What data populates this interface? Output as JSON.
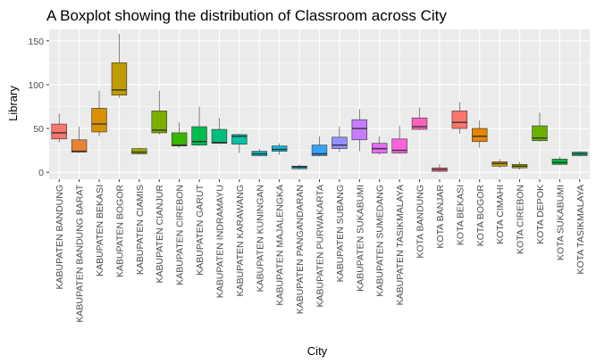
{
  "chart_data": {
    "type": "boxplot",
    "title": "A Boxplot showing the distribution of Classroom across City",
    "xlabel": "City",
    "ylabel": "Library",
    "ylim": [
      -8,
      163
    ],
    "y_ticks": [
      0,
      50,
      100,
      150
    ],
    "grid": true,
    "legend": "none",
    "panel_color": "#ebebeb",
    "categories": [
      {
        "name": "KABUPATEN BANDUNG",
        "min": 34,
        "q1": 38,
        "median": 45,
        "q3": 55,
        "max": 67,
        "color": "#F8766D"
      },
      {
        "name": "KABUPATEN BANDUNG BARAT",
        "min": 22,
        "q1": 23,
        "median": 24,
        "q3": 37,
        "max": 52,
        "color": "#EA8331"
      },
      {
        "name": "KABUPATEN BEKASI",
        "min": 41,
        "q1": 46,
        "median": 55,
        "q3": 73,
        "max": 93,
        "color": "#D89000"
      },
      {
        "name": "KABUPATEN BOGOR",
        "min": 85,
        "q1": 88,
        "median": 94,
        "q3": 125,
        "max": 158,
        "color": "#C09B00"
      },
      {
        "name": "KABUPATEN CIAMIS",
        "min": 20,
        "q1": 21,
        "median": 23,
        "q3": 27,
        "max": 28,
        "color": "#A3A500"
      },
      {
        "name": "KABUPATEN CIANJUR",
        "min": 43,
        "q1": 45,
        "median": 48,
        "q3": 70,
        "max": 93,
        "color": "#7CAE00"
      },
      {
        "name": "KABUPATEN CIREBON",
        "min": 28,
        "q1": 30,
        "median": 31,
        "q3": 45,
        "max": 57,
        "color": "#39B600"
      },
      {
        "name": "KABUPATEN GARUT",
        "min": 30,
        "q1": 31,
        "median": 35,
        "q3": 52,
        "max": 75,
        "color": "#00BB4E"
      },
      {
        "name": "KABUPATEN INDRAMAYU",
        "min": 32,
        "q1": 33,
        "median": 34,
        "q3": 49,
        "max": 62,
        "color": "#00BF7D"
      },
      {
        "name": "KABUPATEN KARAWANG",
        "min": 22,
        "q1": 32,
        "median": 41,
        "q3": 43,
        "max": 44,
        "color": "#00C1A3"
      },
      {
        "name": "KABUPATEN KUNINGAN",
        "min": 18,
        "q1": 19,
        "median": 21,
        "q3": 24,
        "max": 27,
        "color": "#00BFC4"
      },
      {
        "name": "KABUPATEN MAJALENGKA",
        "min": 20,
        "q1": 24,
        "median": 26,
        "q3": 30,
        "max": 33,
        "color": "#00BAE0"
      },
      {
        "name": "KABUPATEN PANGANDARAN",
        "min": 3,
        "q1": 4,
        "median": 6,
        "q3": 7,
        "max": 9,
        "color": "#00B0F6"
      },
      {
        "name": "KABUPATEN PURWAKARTA",
        "min": 18,
        "q1": 19,
        "median": 21,
        "q3": 31,
        "max": 41,
        "color": "#35A2FF"
      },
      {
        "name": "KABUPATEN SUBANG",
        "min": 23,
        "q1": 27,
        "median": 31,
        "q3": 40,
        "max": 52,
        "color": "#9590FF"
      },
      {
        "name": "KABUPATEN SUKABUMI",
        "min": 24,
        "q1": 37,
        "median": 50,
        "q3": 60,
        "max": 72,
        "color": "#C77CFF"
      },
      {
        "name": "KABUPATEN SUMEDANG",
        "min": 20,
        "q1": 22,
        "median": 27,
        "q3": 33,
        "max": 41,
        "color": "#E76BF3"
      },
      {
        "name": "KABUPATEN TASIKMALAYA",
        "min": 21,
        "q1": 22,
        "median": 25,
        "q3": 38,
        "max": 53,
        "color": "#FA62DB"
      },
      {
        "name": "KOTA BANDUNG",
        "min": 48,
        "q1": 49,
        "median": 52,
        "q3": 62,
        "max": 74,
        "color": "#FF62BC"
      },
      {
        "name": "KOTA BANJAR",
        "min": 0,
        "q1": 1,
        "median": 3,
        "q3": 5,
        "max": 9,
        "color": "#FF6C91"
      },
      {
        "name": "KOTA BEKASI",
        "min": 44,
        "q1": 50,
        "median": 57,
        "q3": 70,
        "max": 80,
        "color": "#F8766D"
      },
      {
        "name": "KOTA BOGOR",
        "min": 28,
        "q1": 35,
        "median": 41,
        "q3": 50,
        "max": 59,
        "color": "#E58700"
      },
      {
        "name": "KOTA CIMAHI",
        "min": 5,
        "q1": 7,
        "median": 10,
        "q3": 12,
        "max": 15,
        "color": "#C99800"
      },
      {
        "name": "KOTA CIREBON",
        "min": 3,
        "q1": 5,
        "median": 7,
        "q3": 9,
        "max": 12,
        "color": "#A3A500"
      },
      {
        "name": "KOTA DEPOK",
        "min": 35,
        "q1": 36,
        "median": 39,
        "q3": 53,
        "max": 68,
        "color": "#6BB100"
      },
      {
        "name": "KOTA SUKABUMI",
        "min": 8,
        "q1": 9,
        "median": 11,
        "q3": 15,
        "max": 18,
        "color": "#00BA38"
      },
      {
        "name": "KOTA TASIKMALAYA",
        "min": 18,
        "q1": 19,
        "median": 21,
        "q3": 23,
        "max": 24,
        "color": "#00BF7D"
      }
    ]
  }
}
